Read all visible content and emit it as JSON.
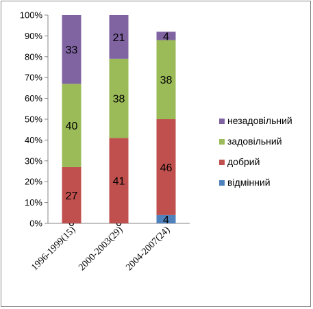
{
  "chart_data": {
    "type": "bar",
    "stacked": true,
    "normalized": true,
    "categories": [
      "1996-1999(15)",
      "2000-2003(29)",
      "2004-2007(24)"
    ],
    "series": [
      {
        "name": "відмінний",
        "values": [
          0,
          0,
          4
        ],
        "color": "#4F81BD"
      },
      {
        "name": "добрий",
        "values": [
          27,
          41,
          46
        ],
        "color": "#C0504D"
      },
      {
        "name": "задовільний",
        "values": [
          40,
          38,
          38
        ],
        "color": "#9BBB59"
      },
      {
        "name": "незадовільний",
        "values": [
          33,
          21,
          4
        ],
        "color": "#8064A2"
      }
    ],
    "yticks": [
      "0%",
      "10%",
      "20%",
      "30%",
      "40%",
      "50%",
      "60%",
      "70%",
      "80%",
      "90%",
      "100%"
    ],
    "ylim": [
      0,
      100
    ],
    "grid": false,
    "legend_position": "right"
  }
}
